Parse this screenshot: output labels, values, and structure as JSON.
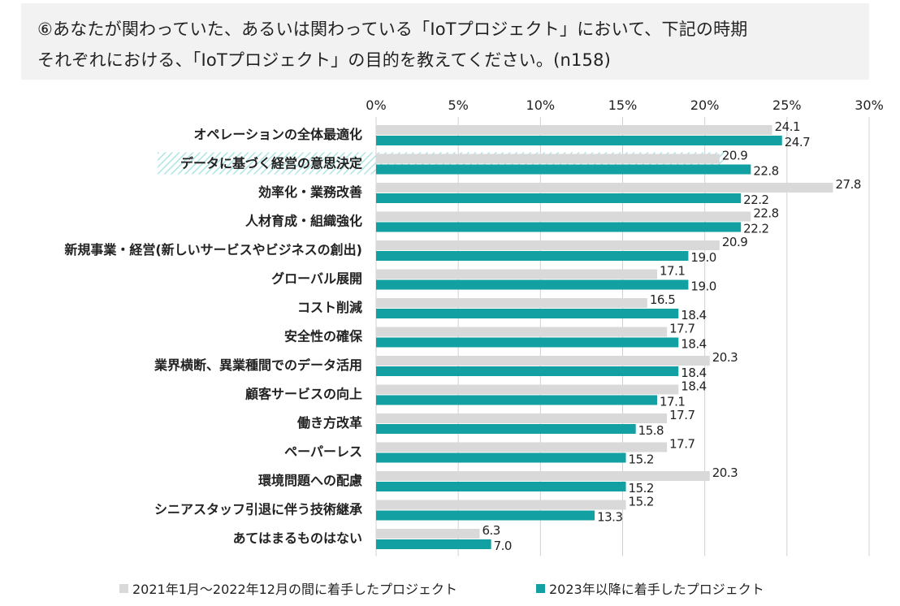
{
  "title": {
    "line1": "⑥あなたが関わっていた、あるいは関わっている「IoTプロジェクト」において、下記の時期",
    "line2": "それぞれにおける、「IoTプロジェクト」の目的を教えてください。(n158)"
  },
  "colors": {
    "series_2021": "#d9d9d9",
    "series_2023": "#12a0a2",
    "highlight": "#aee4e4",
    "grid": "#d0d0d0",
    "text": "#222222"
  },
  "chart_data": {
    "type": "bar",
    "orientation": "horizontal",
    "xlim": [
      0,
      30
    ],
    "ticks": [
      "0%",
      "5%",
      "10%",
      "15%",
      "20%",
      "25%",
      "30%"
    ],
    "tick_values": [
      0,
      5,
      10,
      15,
      20,
      25,
      30
    ],
    "highlighted_category": "データに基づく経営の意思決定",
    "categories": [
      "オペレーションの全体最適化",
      "データに基づく経営の意思決定",
      "効率化・業務改善",
      "人材育成・組織強化",
      "新規事業・経営(新しいサービスやビジネスの創出)",
      "グローバル展開",
      "コスト削減",
      "安全性の確保",
      "業界横断、異業種間でのデータ活用",
      "顧客サービスの向上",
      "働き方改革",
      "ペーパーレス",
      "環境問題への配慮",
      "シニアスタッフ引退に伴う技術継承",
      "あてはまるものはない"
    ],
    "series": [
      {
        "name": "2021年1月～2022年12月の間に着手したプロジェクト",
        "values": [
          24.1,
          20.9,
          27.8,
          22.8,
          20.9,
          17.1,
          16.5,
          17.7,
          20.3,
          18.4,
          17.7,
          17.7,
          20.3,
          15.2,
          6.3
        ],
        "labels": [
          "24.1",
          "20.9",
          "27.8",
          "22.8",
          "20.9",
          "17.1",
          "16.5",
          "17.7",
          "20.3",
          "18.4",
          "17.7",
          "17.7",
          "20.3",
          "15.2",
          "6.3"
        ]
      },
      {
        "name": "2023年以降に着手したプロジェクト",
        "values": [
          24.7,
          22.8,
          22.2,
          22.2,
          19.0,
          19.0,
          18.4,
          18.4,
          18.4,
          17.1,
          15.8,
          15.2,
          15.2,
          13.3,
          7.0
        ],
        "labels": [
          "24.7",
          "22.8",
          "22.2",
          "22.2",
          "19.0",
          "19.0",
          "18.4",
          "18.4",
          "18.4",
          "17.1",
          "15.8",
          "15.2",
          "15.2",
          "13.3",
          "7.0"
        ]
      }
    ]
  }
}
